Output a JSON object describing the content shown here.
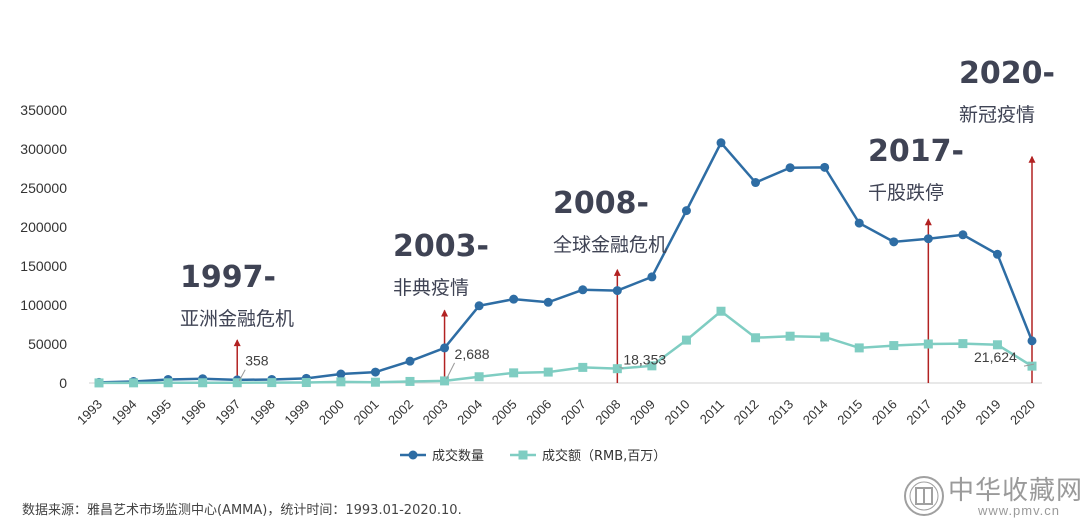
{
  "chart_data": {
    "type": "line",
    "categories": [
      "1993",
      "1994",
      "1995",
      "1996",
      "1997",
      "1998",
      "1999",
      "2000",
      "2001",
      "2002",
      "2003",
      "2004",
      "2005",
      "2006",
      "2007",
      "2008",
      "2009",
      "2010",
      "2011",
      "2012",
      "2013",
      "2014",
      "2015",
      "2016",
      "2017",
      "2018",
      "2019",
      "2020"
    ],
    "series": [
      {
        "name": "成交数量",
        "color": "#2e6da4",
        "marker": "circle",
        "values": [
          800,
          2000,
          4500,
          5500,
          4000,
          4500,
          6000,
          11500,
          14000,
          28000,
          45000,
          99000,
          107500,
          103500,
          119500,
          118500,
          136000,
          221000,
          308000,
          257000,
          276000,
          276500,
          205000,
          181000,
          185000,
          190000,
          165000,
          54000
        ]
      },
      {
        "name": "成交额（RMB,百万）",
        "color": "#7fcdc2",
        "marker": "square",
        "values": [
          100,
          200,
          300,
          300,
          358,
          500,
          600,
          1500,
          1000,
          2000,
          2688,
          8000,
          13000,
          14000,
          20000,
          18353,
          22000,
          55000,
          92000,
          58000,
          60000,
          59000,
          45000,
          48000,
          50000,
          50500,
          49000,
          21624
        ]
      }
    ],
    "ylim": [
      0,
      350000
    ],
    "yticks": [
      "0",
      "50000",
      "100000",
      "150000",
      "200000",
      "250000",
      "300000",
      "350000"
    ],
    "ytick_values": [
      0,
      50000,
      100000,
      150000,
      200000,
      250000,
      300000,
      350000
    ],
    "data_labels": [
      {
        "category": "1997",
        "text": "358"
      },
      {
        "category": "2003",
        "text": "2,688"
      },
      {
        "category": "2008",
        "text": "18,353"
      },
      {
        "category": "2020",
        "text": "21,624"
      }
    ],
    "legend_position": "bottom"
  },
  "events": [
    {
      "year": "1997-",
      "label": "亚洲金融危机",
      "category": "1997",
      "arrow_top": 55000
    },
    {
      "year": "2003-",
      "label": "非典疫情",
      "category": "2003",
      "arrow_top": 93000
    },
    {
      "year": "2008-",
      "label": "全球金融危机",
      "category": "2008",
      "arrow_top": 145000
    },
    {
      "year": "2017-",
      "label": "千股跌停",
      "category": "2017",
      "arrow_top": 210000
    },
    {
      "year": "2020-",
      "label": "新冠疫情",
      "category": "2020",
      "arrow_top": 290000
    }
  ],
  "colors": {
    "arrow": "#b22222",
    "axis": "#d0d0d0"
  },
  "source_note": "数据来源：雅昌艺术市场监测中心(AMMA)，统计时间：1993.01-2020.10.",
  "watermark": {
    "text": "中华收藏网",
    "url": "www.pmv.cn"
  }
}
